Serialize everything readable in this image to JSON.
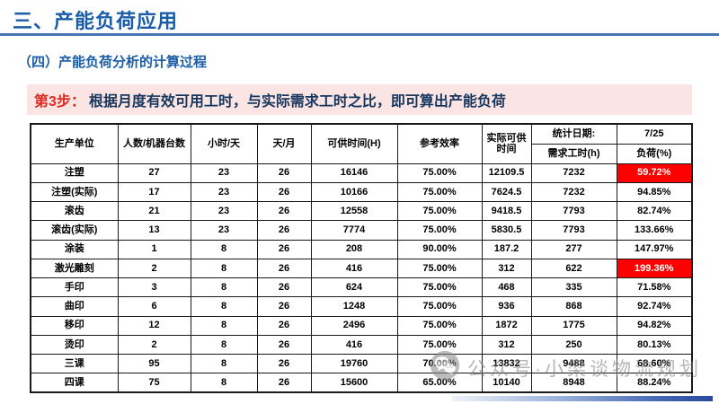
{
  "page": {
    "title": "三、产能负荷应用",
    "subtitle": "（四）产能负荷分析的计算过程"
  },
  "banner": {
    "step_label": "第3步：",
    "text": "根据月度有效可用工时，与实际需求工时之比，即可算出产能负荷"
  },
  "table": {
    "merged_headers": [
      "生产单位",
      "人数/机器台数",
      "小时/天",
      "天/月",
      "可供时间(H)",
      "参考效率",
      "实际可供时间"
    ],
    "stat_header": {
      "row1": [
        "统计日期:",
        "7/25"
      ],
      "row2": [
        "需求工时(h)",
        "负荷(%)"
      ]
    },
    "rows": [
      {
        "cells": [
          "注塑",
          "27",
          "23",
          "26",
          "16146",
          "75.00%",
          "12109.5",
          "7232",
          "59.72%"
        ],
        "highlight_load": true
      },
      {
        "cells": [
          "注塑(实际)",
          "17",
          "23",
          "26",
          "10166",
          "75.00%",
          "7624.5",
          "7232",
          "94.85%"
        ],
        "highlight_load": false
      },
      {
        "cells": [
          "滚齿",
          "21",
          "23",
          "26",
          "12558",
          "75.00%",
          "9418.5",
          "7793",
          "82.74%"
        ],
        "highlight_load": false
      },
      {
        "cells": [
          "滚齿(实际)",
          "13",
          "23",
          "26",
          "7774",
          "75.00%",
          "5830.5",
          "7793",
          "133.66%"
        ],
        "highlight_load": false
      },
      {
        "cells": [
          "涂装",
          "1",
          "8",
          "26",
          "208",
          "90.00%",
          "187.2",
          "277",
          "147.97%"
        ],
        "highlight_load": false
      },
      {
        "cells": [
          "激光雕刻",
          "2",
          "8",
          "26",
          "416",
          "75.00%",
          "312",
          "622",
          "199.36%"
        ],
        "highlight_load": true
      },
      {
        "cells": [
          "手印",
          "3",
          "8",
          "26",
          "624",
          "75.00%",
          "468",
          "335",
          "71.58%"
        ],
        "highlight_load": false
      },
      {
        "cells": [
          "曲印",
          "6",
          "8",
          "26",
          "1248",
          "75.00%",
          "936",
          "868",
          "92.74%"
        ],
        "highlight_load": false
      },
      {
        "cells": [
          "移印",
          "12",
          "8",
          "26",
          "2496",
          "75.00%",
          "1872",
          "1775",
          "94.82%"
        ],
        "highlight_load": false
      },
      {
        "cells": [
          "烫印",
          "2",
          "8",
          "26",
          "416",
          "75.00%",
          "312",
          "250",
          "80.13%"
        ],
        "highlight_load": false
      },
      {
        "cells": [
          "三课",
          "95",
          "8",
          "26",
          "19760",
          "70.00%",
          "13832",
          "9488",
          "68.60%"
        ],
        "highlight_load": false
      },
      {
        "cells": [
          "四课",
          "75",
          "8",
          "26",
          "15600",
          "65.00%",
          "10140",
          "8948",
          "88.24%"
        ],
        "highlight_load": false
      }
    ]
  },
  "watermark": {
    "icon": "wechat-icon",
    "text": "公众号·小梁谈物流规划"
  },
  "colors": {
    "accent_blue": "#1a5ca8",
    "rule_blue": "#4876b4",
    "banner_bg": "#fae5e4",
    "step_red": "#e02a20",
    "banner_text_navy": "#17365d",
    "highlight_red": "#ff0000",
    "gradient_bar_end": "#2b4a9b",
    "watermark_gray": "#878787"
  }
}
